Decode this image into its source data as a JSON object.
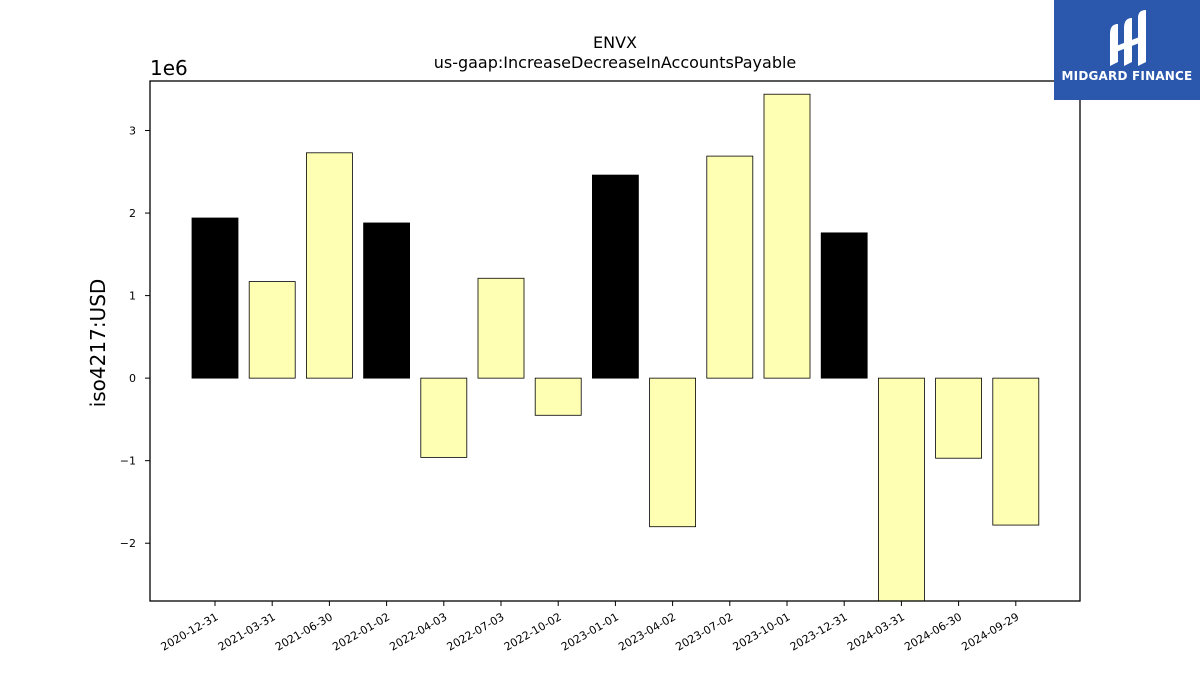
{
  "chart_data": {
    "type": "bar",
    "title": "ENVX",
    "subtitle": "us-gaap:IncreaseDecreaseInAccountsPayable",
    "xlabel": "",
    "ylabel": "iso4217:USD",
    "y_exponent_label": "1e6",
    "y_scale": 1000000,
    "ylim": [
      -2700000,
      3600000
    ],
    "yticks": [
      -2,
      -1,
      0,
      1,
      2,
      3
    ],
    "ytick_labels": [
      "−2",
      "−1",
      "0",
      "1",
      "2",
      "3"
    ],
    "categories": [
      "2020-12-31",
      "2021-03-31",
      "2021-06-30",
      "2022-01-02",
      "2022-04-03",
      "2022-07-03",
      "2022-10-02",
      "2023-01-01",
      "2023-04-02",
      "2023-07-02",
      "2023-10-01",
      "2023-12-31",
      "2024-03-31",
      "2024-06-30",
      "2024-09-29"
    ],
    "values": [
      1940000,
      1170000,
      2730000,
      1880000,
      -960000,
      1210000,
      -450000,
      2460000,
      -1800000,
      2690000,
      3440000,
      1760000,
      -2700000,
      -970000,
      -1780000
    ],
    "bar_colors": [
      "#000000",
      "#ffffb3",
      "#ffffb3",
      "#000000",
      "#ffffb3",
      "#ffffb3",
      "#ffffb3",
      "#000000",
      "#ffffb3",
      "#ffffb3",
      "#ffffb3",
      "#000000",
      "#ffffb3",
      "#ffffb3",
      "#ffffb3"
    ],
    "grid": false,
    "legend": "none"
  },
  "logo": {
    "text": "MIDGARD FINANCE",
    "background": "#2b58ad"
  }
}
